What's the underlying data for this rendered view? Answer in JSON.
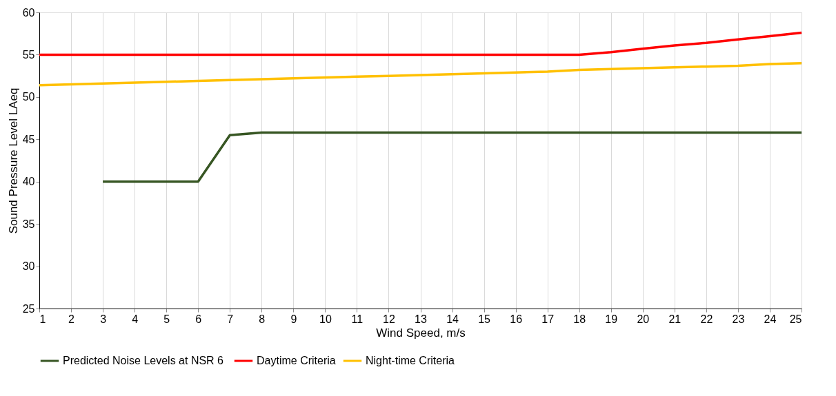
{
  "chart_data": {
    "type": "line",
    "xlabel": "Wind Speed, m/s",
    "ylabel": "Sound Pressure Level LAeq",
    "x": [
      1,
      2,
      3,
      4,
      5,
      6,
      7,
      8,
      9,
      10,
      11,
      12,
      13,
      14,
      15,
      16,
      17,
      18,
      19,
      20,
      21,
      22,
      23,
      24,
      25
    ],
    "series": [
      {
        "name": "Predicted Noise Levels at NSR  6",
        "color": "#375623",
        "values": [
          null,
          null,
          40,
          40,
          40,
          40,
          45.5,
          45.8,
          45.8,
          45.8,
          45.8,
          45.8,
          45.8,
          45.8,
          45.8,
          45.8,
          45.8,
          45.8,
          45.8,
          45.8,
          45.8,
          45.8,
          45.8,
          45.8,
          45.8
        ]
      },
      {
        "name": "Daytime Criteria",
        "color": "#ff0000",
        "values": [
          55,
          55,
          55,
          55,
          55,
          55,
          55,
          55,
          55,
          55,
          55,
          55,
          55,
          55,
          55,
          55,
          55,
          55,
          55.3,
          55.7,
          56.1,
          56.4,
          56.8,
          57.2,
          57.6
        ]
      },
      {
        "name": "Night-time Criteria",
        "color": "#ffc000",
        "values": [
          51.4,
          51.5,
          51.6,
          51.7,
          51.8,
          51.9,
          52.0,
          52.1,
          52.2,
          52.3,
          52.4,
          52.5,
          52.6,
          52.7,
          52.8,
          52.9,
          53.0,
          53.2,
          53.3,
          53.4,
          53.5,
          53.6,
          53.7,
          53.9,
          54.0
        ]
      }
    ],
    "xlim": [
      1,
      25
    ],
    "xticks": [
      1,
      2,
      3,
      4,
      5,
      6,
      7,
      8,
      9,
      10,
      11,
      12,
      13,
      14,
      15,
      16,
      17,
      18,
      19,
      20,
      21,
      22,
      23,
      24,
      25
    ],
    "ylim": [
      25,
      60
    ],
    "yticks": [
      25,
      30,
      35,
      40,
      45,
      50,
      55,
      60
    ],
    "grid": "x",
    "legend": "bottom",
    "marker": "none",
    "line_style": "solid"
  }
}
